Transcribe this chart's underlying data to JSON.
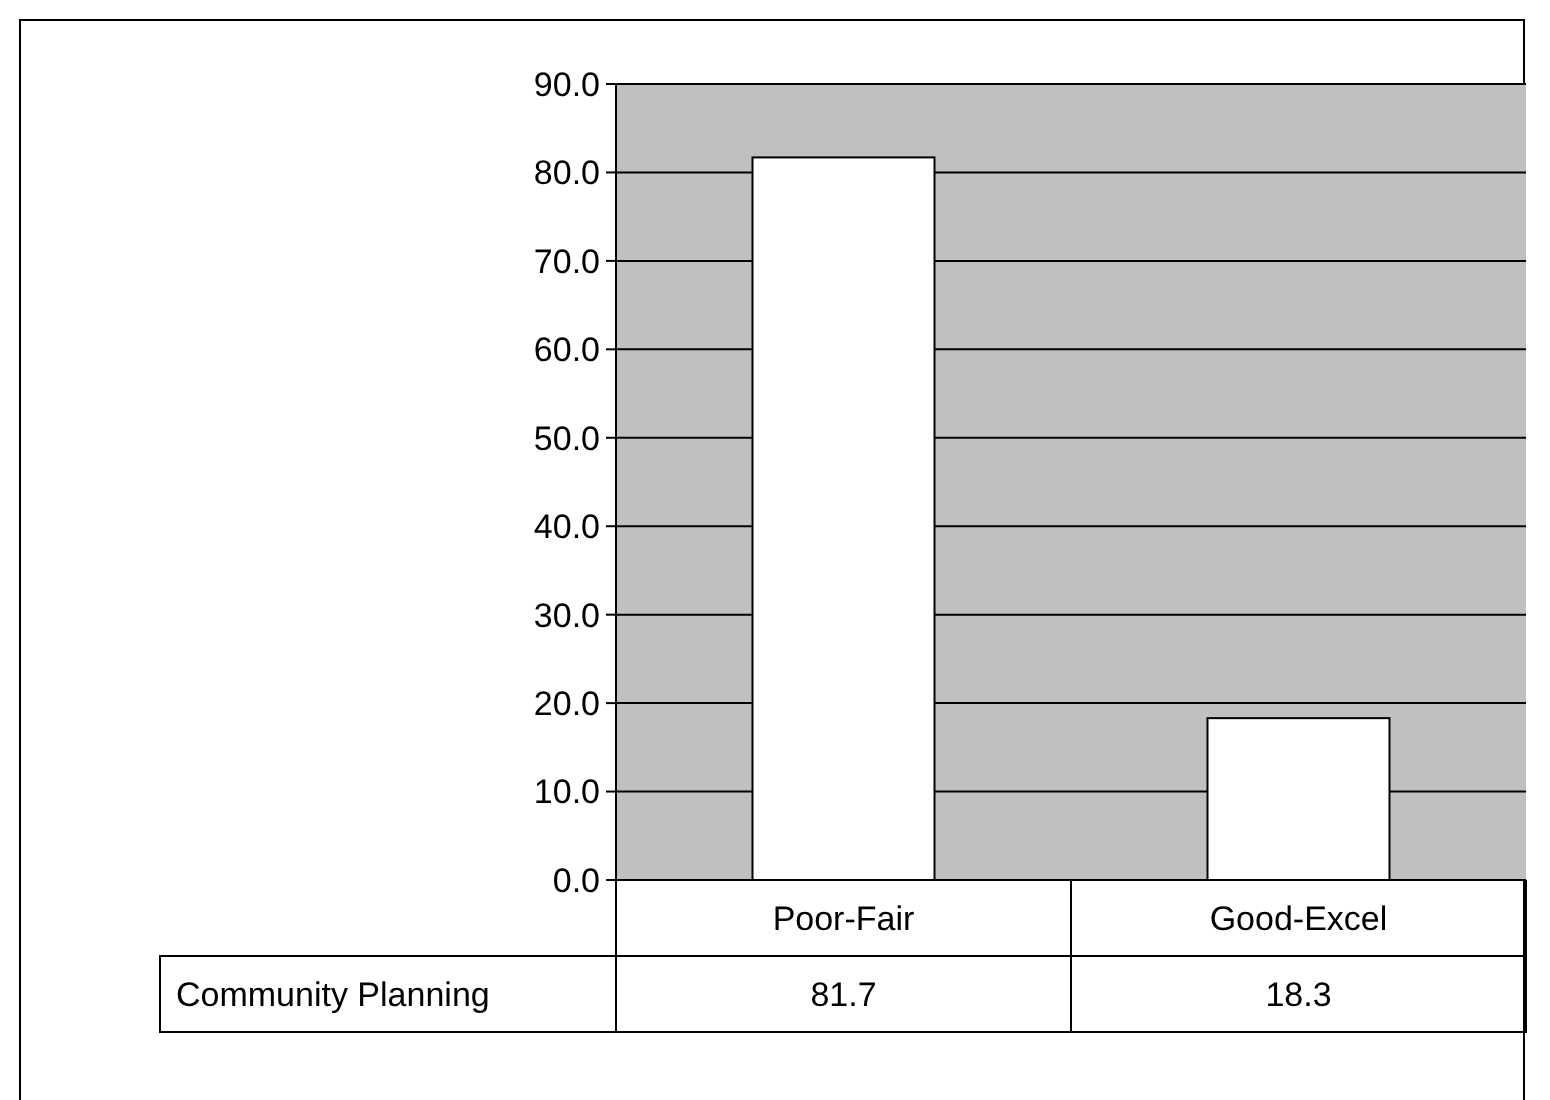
{
  "chart_data": {
    "type": "bar",
    "categories": [
      "Poor-Fair",
      "Good-Excel"
    ],
    "series": [
      {
        "name": "Community Planning",
        "color": "#ffffff",
        "values": [
          81.7,
          18.3
        ]
      }
    ],
    "ylim": [
      0,
      90
    ],
    "yticks": [
      {
        "value": 0,
        "label": "0.0"
      },
      {
        "value": 10,
        "label": "10.0"
      },
      {
        "value": 20,
        "label": "20.0"
      },
      {
        "value": 30,
        "label": "30.0"
      },
      {
        "value": 40,
        "label": "40.0"
      },
      {
        "value": 50,
        "label": "50.0"
      },
      {
        "value": 60,
        "label": "60.0"
      },
      {
        "value": 70,
        "label": "70.0"
      },
      {
        "value": 80,
        "label": "80.0"
      },
      {
        "value": 90,
        "label": "90.0"
      }
    ],
    "grid": "y",
    "data_labels": true
  }
}
